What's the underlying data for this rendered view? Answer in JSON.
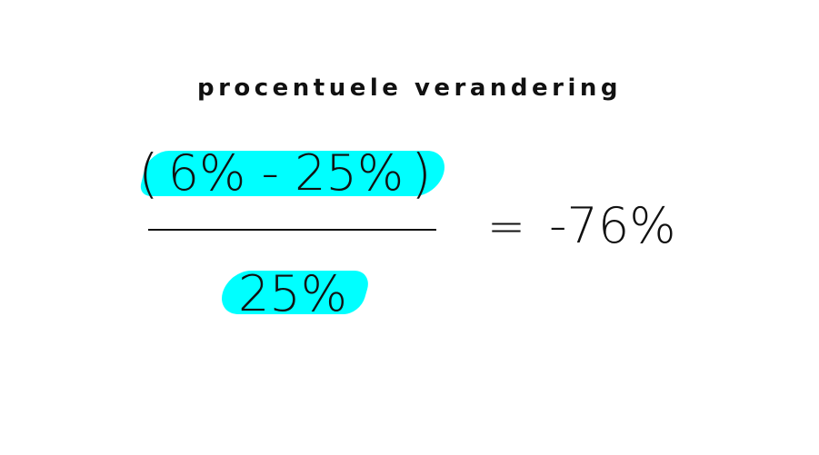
{
  "title": "procentuele verandering",
  "formula": {
    "paren_open": "(",
    "numerator": "6% - 25%",
    "paren_close": ")",
    "denominator": "25%",
    "equals": "=",
    "result": "-76%"
  },
  "colors": {
    "highlight": "#00ffff",
    "text": "#111111",
    "background": "#ffffff"
  }
}
